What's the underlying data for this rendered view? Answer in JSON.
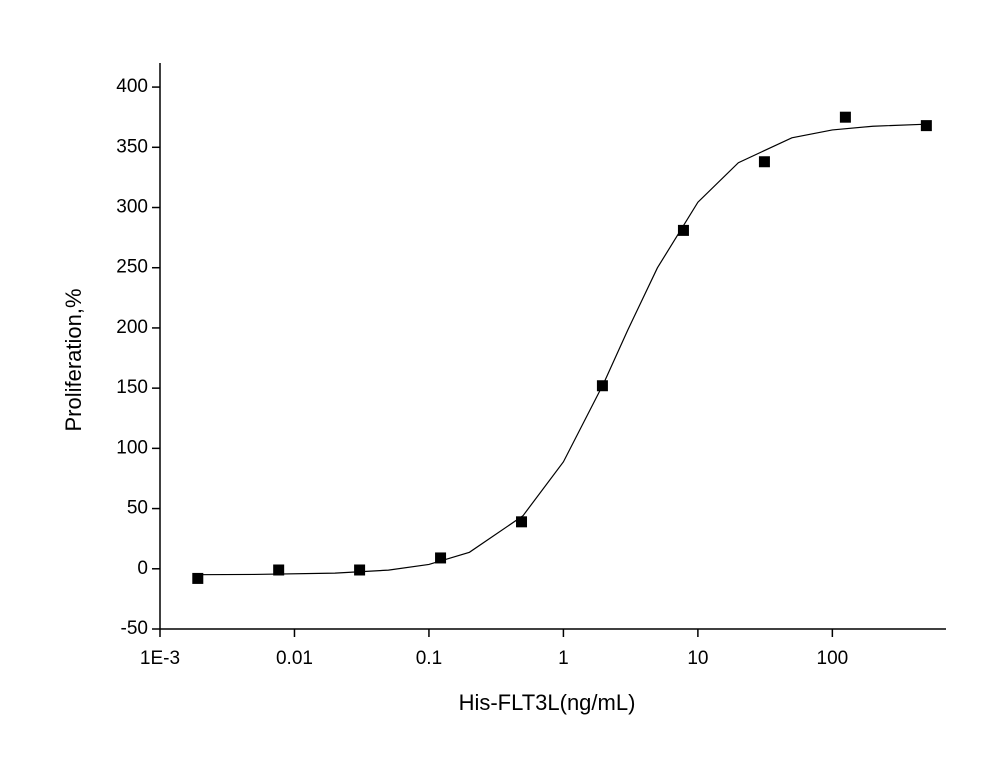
{
  "chart_data": {
    "type": "scatter",
    "x_label": "His-FLT3L(ng/mL)",
    "y_label": "Proliferation,%",
    "x_scale": "log",
    "xlim": [
      0.001,
      700
    ],
    "xticks": [
      {
        "value": 0.001,
        "label": "1E-3"
      },
      0.01,
      0.1,
      1,
      10,
      100
    ],
    "ylim": [
      -50,
      420
    ],
    "yticks": [
      -50,
      0,
      50,
      100,
      150,
      200,
      250,
      300,
      350,
      400
    ],
    "series": [
      {
        "color": "#000000",
        "marker": "square",
        "x": [
          0.00191,
          0.00763,
          0.0305,
          0.122,
          0.488,
          1.95,
          7.81,
          31.25,
          125,
          500
        ],
        "values": [
          -8,
          -1,
          -1,
          9,
          39,
          152,
          281,
          338,
          375,
          368
        ]
      },
      {
        "color": "#000000",
        "marker": "line",
        "x": [
          0.0019,
          0.005,
          0.02,
          0.05,
          0.1,
          0.2,
          0.5,
          1,
          2,
          3,
          5,
          10,
          20,
          50,
          100,
          200,
          500
        ],
        "values": [
          -4.9,
          -4.7,
          -3.6,
          -1.1,
          3.6,
          13.7,
          44,
          88.8,
          154.4,
          197.9,
          249.9,
          304.4,
          337.2,
          357.9,
          364.4,
          367.5,
          369.2
        ]
      }
    ]
  }
}
